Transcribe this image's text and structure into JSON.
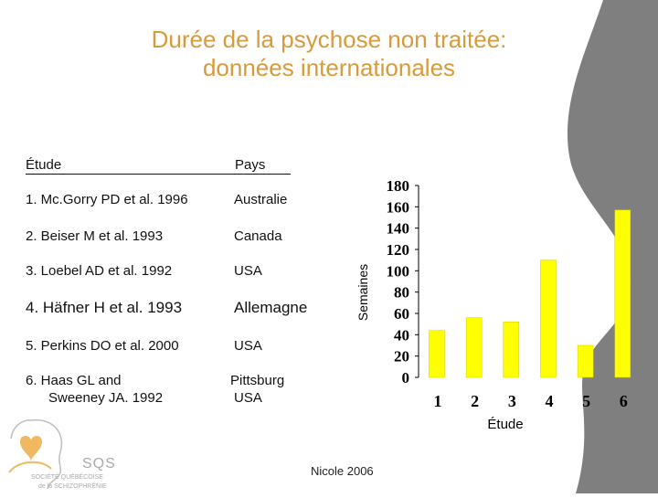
{
  "slide": {
    "title_line1": "Durée de la psychose non traitée:",
    "title_line2": "données internationales",
    "table": {
      "col_study": "Étude",
      "col_country": "Pays",
      "rows": [
        {
          "study": "1.  Mc.Gorry PD et al. 1996",
          "country": "Australie"
        },
        {
          "study": "2.  Beiser M et al. 1993",
          "country": "Canada"
        },
        {
          "study": "3.  Loebel AD et al. 1992",
          "country": "USA"
        },
        {
          "study": "4.  Häfner H et al. 1993",
          "country": "Allemagne"
        },
        {
          "study": "5.  Perkins DO et al. 2000",
          "country": "USA"
        },
        {
          "study_line1": "6.  Haas GL and",
          "study_line2": "Sweeney JA. 1992",
          "country_line1": "Pittsburg",
          "country_line2": "USA"
        }
      ]
    },
    "credit": "Nicole 2006",
    "logo": {
      "abbrev": "SQS",
      "line1": "SOCIÉTÉ QUÉBÉCOISE",
      "line2": "de la SCHIZOPHRÉNIE"
    }
  },
  "colors": {
    "title": "#d99a3a",
    "bar": "#ffff00",
    "background_shape": "#7f7f7f"
  },
  "chart_data": {
    "type": "bar",
    "categories": [
      "1",
      "2",
      "3",
      "4",
      "5",
      "6"
    ],
    "values": [
      44,
      56,
      52,
      110,
      30,
      157
    ],
    "xlabel": "Étude",
    "ylabel": "Semaines",
    "ylim": [
      0,
      180
    ],
    "yticks": [
      0,
      20,
      40,
      60,
      80,
      100,
      120,
      140,
      160,
      180
    ],
    "grid": false
  }
}
